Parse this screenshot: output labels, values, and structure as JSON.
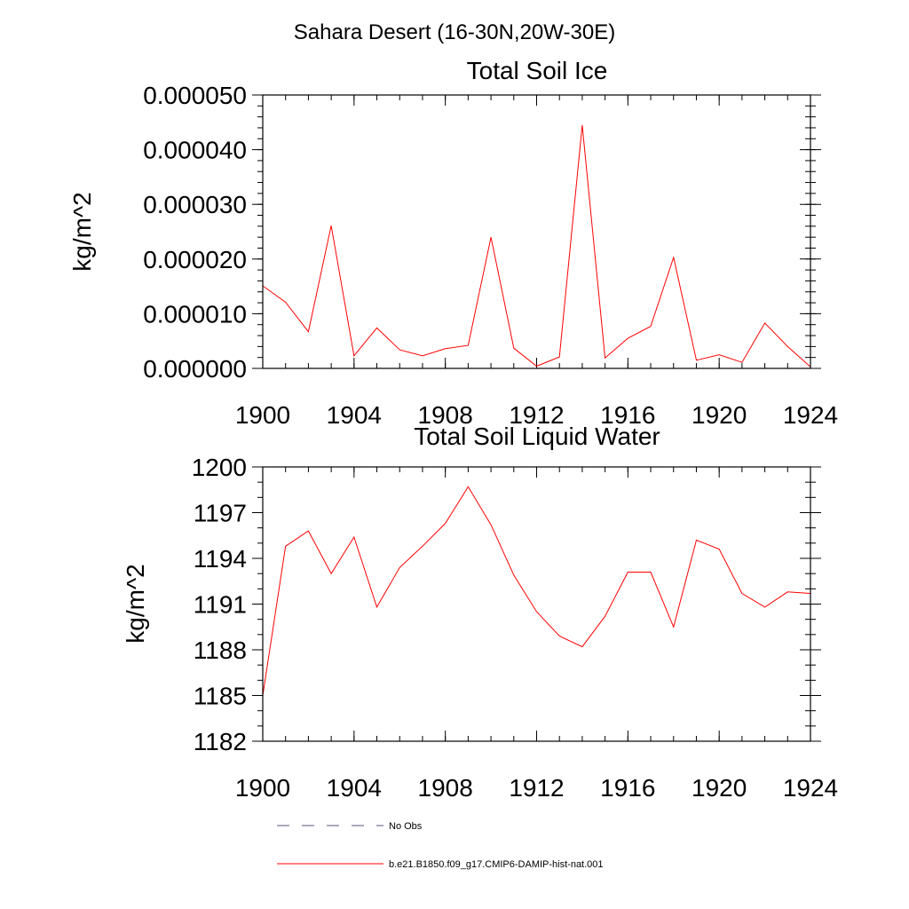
{
  "figure": {
    "suptitle": "Sahara Desert (16-30N,20W-30E)"
  },
  "chart_data": [
    {
      "type": "line",
      "title": "Total Soil Ice",
      "ylabel": "kg/m^2",
      "xlabel": "",
      "xlim": [
        1900,
        1924
      ],
      "ylim": [
        0,
        5e-05
      ],
      "x_ticks": [
        "1900",
        "1904",
        "1908",
        "1912",
        "1916",
        "1920",
        "1924"
      ],
      "y_ticks": [
        "0.000000",
        "0.000010",
        "0.000020",
        "0.000030",
        "0.000040",
        "0.000050"
      ],
      "x_minor_step": 1,
      "y_minor_step": 2e-06,
      "x": [
        1900,
        1901,
        1902,
        1903,
        1904,
        1905,
        1906,
        1907,
        1908,
        1909,
        1910,
        1911,
        1912,
        1913,
        1914,
        1915,
        1916,
        1917,
        1918,
        1919,
        1920,
        1921,
        1922,
        1923,
        1924
      ],
      "series": [
        {
          "color": "#ff0000",
          "values": [
            1.51e-05,
            1.21e-05,
            6.7e-06,
            2.61e-05,
            2.3e-06,
            7.4e-06,
            3.4e-06,
            2.3e-06,
            3.6e-06,
            4.2e-06,
            2.4e-05,
            3.7e-06,
            4e-07,
            2.1e-06,
            4.45e-05,
            1.9e-06,
            5.5e-06,
            7.7e-06,
            2.03e-05,
            1.5e-06,
            2.5e-06,
            1.1e-06,
            8.3e-06,
            4e-06,
            3e-07
          ]
        }
      ]
    },
    {
      "type": "line",
      "title": "Total Soil Liquid Water",
      "ylabel": "kg/m^2",
      "xlabel": "",
      "xlim": [
        1900,
        1924
      ],
      "ylim": [
        1182,
        1200
      ],
      "x_ticks": [
        "1900",
        "1904",
        "1908",
        "1912",
        "1916",
        "1920",
        "1924"
      ],
      "y_ticks": [
        "1182",
        "1185",
        "1188",
        "1191",
        "1194",
        "1197",
        "1200"
      ],
      "x_minor_step": 1,
      "y_minor_step": 1,
      "x": [
        1900,
        1901,
        1902,
        1903,
        1904,
        1905,
        1906,
        1907,
        1908,
        1909,
        1910,
        1911,
        1912,
        1913,
        1914,
        1915,
        1916,
        1917,
        1918,
        1919,
        1920,
        1921,
        1922,
        1923,
        1924
      ],
      "series": [
        {
          "color": "#ff0000",
          "values": [
            1185.0,
            1194.8,
            1195.8,
            1193.0,
            1195.4,
            1190.8,
            1193.4,
            1194.8,
            1196.3,
            1198.7,
            1196.2,
            1192.9,
            1190.5,
            1188.9,
            1188.2,
            1190.2,
            1193.1,
            1193.1,
            1189.5,
            1195.2,
            1194.6,
            1191.7,
            1190.8,
            1191.8,
            1191.7
          ]
        }
      ]
    }
  ],
  "legend": {
    "entries": [
      {
        "label": "No Obs",
        "style": "dashed",
        "color": "#555577"
      },
      {
        "label": "b.e21.B1850.f09_g17.CMIP6-DAMIP-hist-nat.001",
        "style": "solid",
        "color": "#ff0000"
      }
    ]
  }
}
